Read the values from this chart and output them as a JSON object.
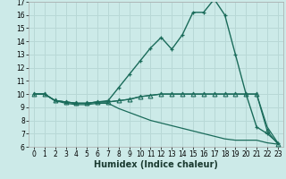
{
  "xlabel": "Humidex (Indice chaleur)",
  "xlim": [
    -0.5,
    23.5
  ],
  "ylim": [
    6,
    17
  ],
  "xticks": [
    0,
    1,
    2,
    3,
    4,
    5,
    6,
    7,
    8,
    9,
    10,
    11,
    12,
    13,
    14,
    15,
    16,
    17,
    18,
    19,
    20,
    21,
    22,
    23
  ],
  "yticks": [
    6,
    7,
    8,
    9,
    10,
    11,
    12,
    13,
    14,
    15,
    16,
    17
  ],
  "bg_color": "#cceae8",
  "grid_color": "#b8d8d6",
  "line_color": "#1a6b5a",
  "curves": [
    {
      "x": [
        0,
        1,
        2,
        3,
        4,
        5,
        6,
        7,
        8,
        9,
        10,
        11,
        12,
        13,
        14,
        15,
        16,
        17,
        18,
        19,
        20,
        21,
        22,
        23
      ],
      "y": [
        10.0,
        10.0,
        9.5,
        9.4,
        9.3,
        9.3,
        9.4,
        9.5,
        10.5,
        11.5,
        12.5,
        13.5,
        14.3,
        13.4,
        14.5,
        16.2,
        16.2,
        17.2,
        16.0,
        13.0,
        10.0,
        7.5,
        7.0,
        6.3
      ],
      "marker": "+",
      "lw": 1.0
    },
    {
      "x": [
        0,
        1,
        2,
        3,
        4,
        5,
        6,
        7,
        8,
        9,
        10,
        11,
        12,
        13,
        14,
        15,
        16,
        17,
        18,
        19,
        20,
        21,
        22,
        23
      ],
      "y": [
        10.0,
        10.0,
        9.5,
        9.4,
        9.3,
        9.3,
        9.4,
        9.4,
        9.5,
        9.6,
        9.8,
        9.9,
        10.0,
        10.0,
        10.0,
        10.0,
        10.0,
        10.0,
        10.0,
        10.0,
        10.0,
        10.0,
        7.5,
        6.3
      ],
      "marker": null,
      "lw": 0.9
    },
    {
      "x": [
        0,
        1,
        2,
        3,
        4,
        5,
        6,
        7,
        8,
        9,
        10,
        11,
        12,
        13,
        14,
        15,
        16,
        17,
        18,
        19,
        20,
        21,
        22,
        23
      ],
      "y": [
        10.0,
        10.0,
        9.5,
        9.4,
        9.3,
        9.3,
        9.4,
        9.4,
        9.5,
        9.6,
        9.8,
        9.9,
        10.0,
        10.0,
        10.0,
        10.0,
        10.0,
        10.0,
        10.0,
        10.0,
        10.0,
        10.0,
        7.2,
        6.2
      ],
      "marker": "^",
      "lw": 0.9
    },
    {
      "x": [
        0,
        1,
        2,
        3,
        4,
        5,
        6,
        7,
        8,
        9,
        10,
        11,
        12,
        13,
        14,
        15,
        16,
        17,
        18,
        19,
        20,
        21,
        22,
        23
      ],
      "y": [
        10.0,
        10.0,
        9.5,
        9.3,
        9.2,
        9.2,
        9.3,
        9.3,
        8.9,
        8.6,
        8.3,
        8.0,
        7.8,
        7.6,
        7.4,
        7.2,
        7.0,
        6.8,
        6.6,
        6.5,
        6.5,
        6.5,
        6.3,
        6.2
      ],
      "marker": null,
      "lw": 0.9
    }
  ],
  "tick_fontsize": 5.5,
  "label_fontsize": 7.0
}
